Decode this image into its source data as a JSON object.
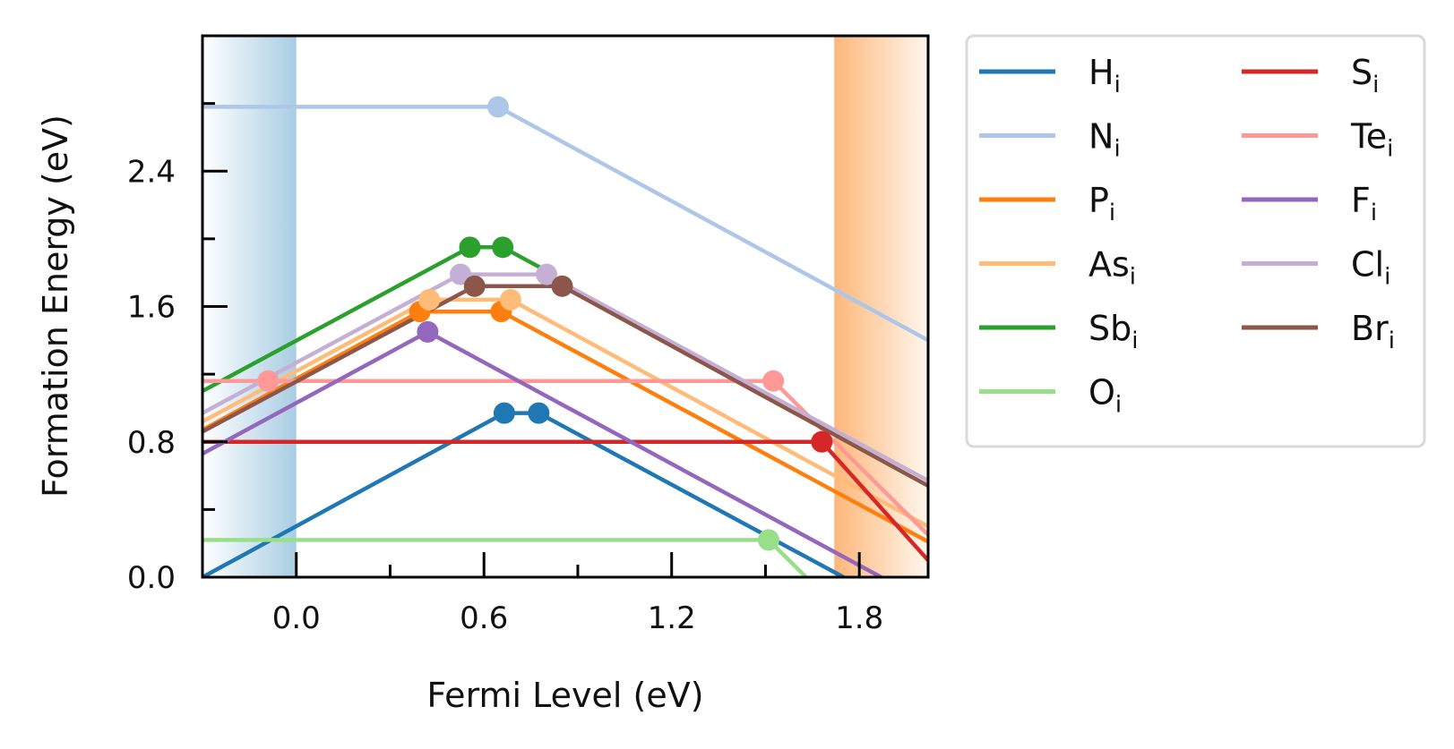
{
  "chart_data": {
    "type": "line",
    "xlabel": "Fermi Level (eV)",
    "ylabel": "Formation Energy (eV)",
    "xlim": [
      -0.3,
      2.02
    ],
    "ylim": [
      0.0,
      3.2
    ],
    "xticks": [
      "0.0",
      "0.6",
      "1.2",
      "1.8"
    ],
    "xtick_values": [
      0.0,
      0.6,
      1.2,
      1.8
    ],
    "yticks": [
      "0.0",
      "0.8",
      "1.6",
      "2.4"
    ],
    "ytick_values": [
      0.0,
      0.8,
      1.6,
      2.4
    ],
    "grid": false,
    "legend_placement": "outside right, two columns",
    "band_edges": {
      "vbm": 0.0,
      "cbm": 1.72,
      "vbm_color": "#a9cde3",
      "cbm_color": "#fdb77a"
    },
    "series": [
      {
        "name": "H",
        "sub": "i",
        "color": "#1f77b4",
        "points": [
          [
            -0.3,
            0.0
          ],
          [
            0.665,
            0.97
          ],
          [
            0.775,
            0.97
          ],
          [
            1.75,
            0.0
          ]
        ],
        "markers": [
          [
            0.665,
            0.97
          ],
          [
            0.775,
            0.97
          ]
        ]
      },
      {
        "name": "N",
        "sub": "i",
        "color": "#aec7e8",
        "points": [
          [
            -0.3,
            2.78
          ],
          [
            0.645,
            2.78
          ],
          [
            2.02,
            1.4
          ]
        ],
        "markers": [
          [
            0.645,
            2.78
          ]
        ]
      },
      {
        "name": "P",
        "sub": "i",
        "color": "#ff7f0e",
        "points": [
          [
            -0.3,
            0.87
          ],
          [
            0.395,
            1.57
          ],
          [
            0.655,
            1.57
          ],
          [
            2.02,
            0.21
          ]
        ],
        "markers": [
          [
            0.395,
            1.57
          ],
          [
            0.655,
            1.57
          ]
        ]
      },
      {
        "name": "As",
        "sub": "i",
        "color": "#ffbb78",
        "points": [
          [
            -0.3,
            0.92
          ],
          [
            0.425,
            1.64
          ],
          [
            0.685,
            1.64
          ],
          [
            2.02,
            0.3
          ]
        ],
        "markers": [
          [
            0.425,
            1.64
          ],
          [
            0.685,
            1.64
          ]
        ]
      },
      {
        "name": "Sb",
        "sub": "i",
        "color": "#2ca02c",
        "points": [
          [
            -0.3,
            1.1
          ],
          [
            0.555,
            1.95
          ],
          [
            0.66,
            1.95
          ],
          [
            0.8,
            1.81
          ]
        ],
        "markers": [
          [
            0.555,
            1.95
          ],
          [
            0.66,
            1.95
          ]
        ]
      },
      {
        "name": "O",
        "sub": "i",
        "color": "#98df8a",
        "points": [
          [
            -0.3,
            0.22
          ],
          [
            1.51,
            0.22
          ],
          [
            1.63,
            0.0
          ]
        ],
        "markers": [
          [
            1.51,
            0.22
          ]
        ]
      },
      {
        "name": "S",
        "sub": "i",
        "color": "#d62728",
        "points": [
          [
            -0.3,
            0.8
          ],
          [
            1.68,
            0.8
          ],
          [
            2.02,
            0.1
          ]
        ],
        "markers": [
          [
            1.68,
            0.8
          ]
        ]
      },
      {
        "name": "Te",
        "sub": "i",
        "color": "#ff9896",
        "points": [
          [
            -0.3,
            1.16
          ],
          [
            -0.09,
            1.16
          ],
          [
            1.525,
            1.16
          ],
          [
            2.02,
            0.25
          ]
        ],
        "markers": [
          [
            -0.09,
            1.16
          ],
          [
            1.525,
            1.16
          ]
        ]
      },
      {
        "name": "F",
        "sub": "i",
        "color": "#9467bd",
        "points": [
          [
            -0.3,
            0.73
          ],
          [
            0.42,
            1.45
          ],
          [
            1.87,
            0.0
          ]
        ],
        "markers": [
          [
            0.42,
            1.45
          ]
        ]
      },
      {
        "name": "Cl",
        "sub": "i",
        "color": "#c5b0d5",
        "points": [
          [
            -0.3,
            0.97
          ],
          [
            0.525,
            1.79
          ],
          [
            0.8,
            1.79
          ],
          [
            2.02,
            0.57
          ]
        ],
        "markers": [
          [
            0.525,
            1.79
          ],
          [
            0.8,
            1.79
          ]
        ]
      },
      {
        "name": "Br",
        "sub": "i",
        "color": "#8c564b",
        "points": [
          [
            -0.3,
            0.86
          ],
          [
            0.57,
            1.72
          ],
          [
            0.85,
            1.72
          ],
          [
            2.02,
            0.54
          ]
        ],
        "markers": [
          [
            0.57,
            1.72
          ],
          [
            0.85,
            1.72
          ]
        ]
      }
    ]
  }
}
